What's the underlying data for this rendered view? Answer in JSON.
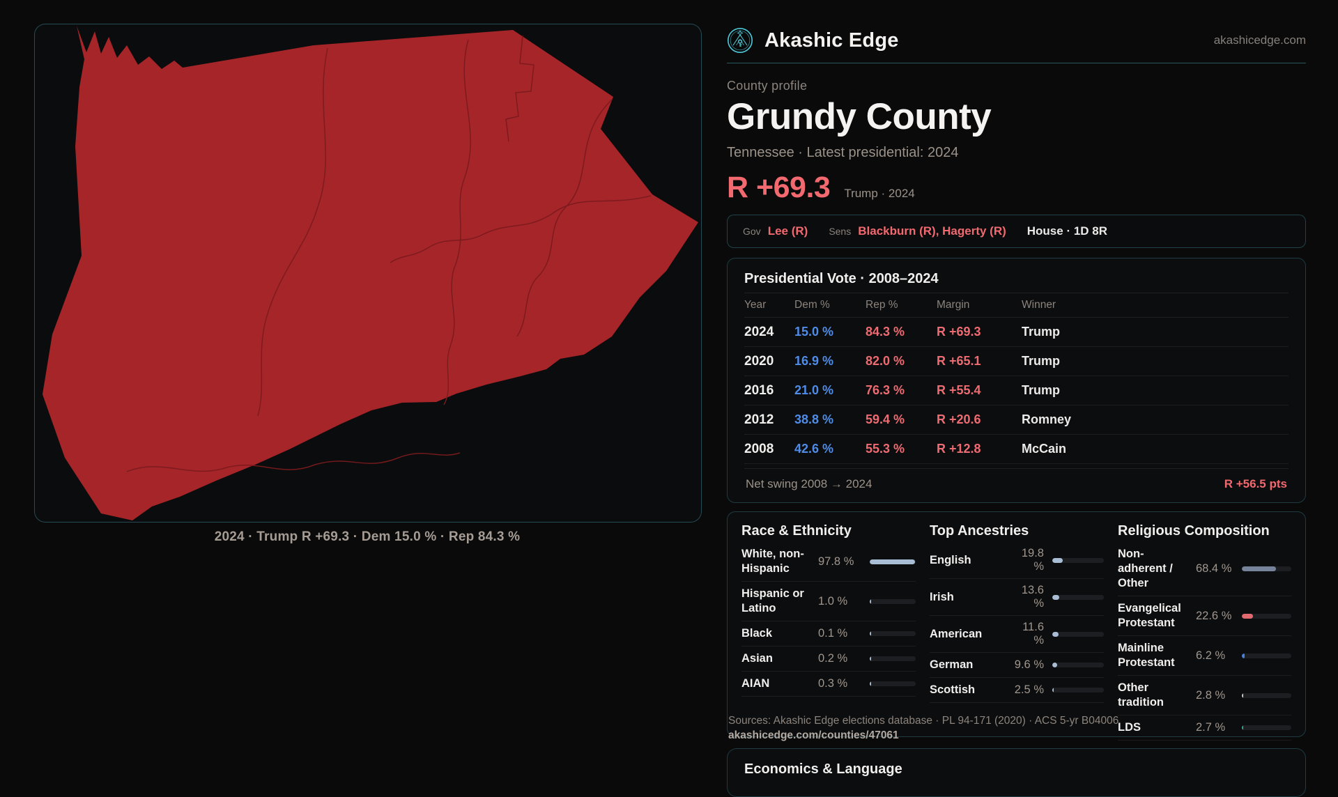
{
  "brand": {
    "name": "Akashic Edge",
    "domain": "akashicedge.com"
  },
  "profile": {
    "kicker": "County profile",
    "title": "Grundy County",
    "subtitle": "Tennessee · Latest presidential: 2024",
    "margin_big": "R +69.3",
    "margin_note": "Trump · 2024"
  },
  "officials": {
    "gov_label": "Gov",
    "gov_value": "Lee (R)",
    "sens_label": "Sens",
    "sens_value": "Blackburn (R), Hagerty (R)",
    "house_value": "House · 1D 8R"
  },
  "vote_table": {
    "title": "Presidential Vote · 2008–2024",
    "headers": {
      "year": "Year",
      "dem": "Dem %",
      "rep": "Rep %",
      "margin": "Margin",
      "winner": "Winner"
    },
    "rows": [
      {
        "year": "2024",
        "dem": "15.0 %",
        "rep": "84.3 %",
        "margin": "R +69.3",
        "winner": "Trump"
      },
      {
        "year": "2020",
        "dem": "16.9 %",
        "rep": "82.0 %",
        "margin": "R +65.1",
        "winner": "Trump"
      },
      {
        "year": "2016",
        "dem": "21.0 %",
        "rep": "76.3 %",
        "margin": "R +55.4",
        "winner": "Trump"
      },
      {
        "year": "2012",
        "dem": "38.8 %",
        "rep": "59.4 %",
        "margin": "R +20.6",
        "winner": "Romney"
      },
      {
        "year": "2008",
        "dem": "42.6 %",
        "rep": "55.3 %",
        "margin": "R +12.8",
        "winner": "McCain"
      }
    ],
    "footer": {
      "label": "Net swing 2008 → 2024",
      "value": "R +56.5 pts"
    }
  },
  "race": {
    "title": "Race & Ethnicity",
    "rows": [
      {
        "label": "White, non-Hispanic",
        "value": "97.8 %"
      },
      {
        "label": "Hispanic or Latino",
        "value": "1.0 %"
      },
      {
        "label": "Black",
        "value": "0.1 %"
      },
      {
        "label": "Asian",
        "value": "0.2 %"
      },
      {
        "label": "AIAN",
        "value": "0.3 %"
      }
    ]
  },
  "ancestries": {
    "title": "Top Ancestries",
    "rows": [
      {
        "label": "English",
        "value": "19.8 %"
      },
      {
        "label": "Irish",
        "value": "13.6 %"
      },
      {
        "label": "American",
        "value": "11.6 %"
      },
      {
        "label": "German",
        "value": "9.6 %"
      },
      {
        "label": "Scottish",
        "value": "2.5 %"
      }
    ]
  },
  "religion": {
    "title": "Religious Composition",
    "rows": [
      {
        "label": "Non-adherent / Other",
        "value": "68.4 %",
        "color": "#76839a"
      },
      {
        "label": "Evangelical Protestant",
        "value": "22.6 %",
        "color": "#e2696f"
      },
      {
        "label": "Mainline Protestant",
        "value": "6.2 %",
        "color": "#4a80d8"
      },
      {
        "label": "Other tradition",
        "value": "2.8 %",
        "color": "#cfcfcf"
      },
      {
        "label": "LDS",
        "value": "2.7 %",
        "color": "#2fae91"
      }
    ]
  },
  "sources": {
    "line1": "Sources: Akashic Edge elections database · PL 94-171 (2020) · ACS 5-yr B04006",
    "line2": "akashicedge.com/counties/47061"
  },
  "economics": {
    "title": "Economics & Language"
  },
  "map": {
    "caption": "2024 · Trump R +69.3 · Dem 15.0 % · Rep 84.3 %",
    "county_fill": "#a62529",
    "boundary_color": "#7a1a1e"
  },
  "colors": {
    "accent_red": "#f2696f",
    "accent_blue": "#4f8ce8",
    "teal_border": "#49a8b8",
    "bar_fill": "#a9bdd4",
    "logo_cyan": "#4ecadb"
  }
}
